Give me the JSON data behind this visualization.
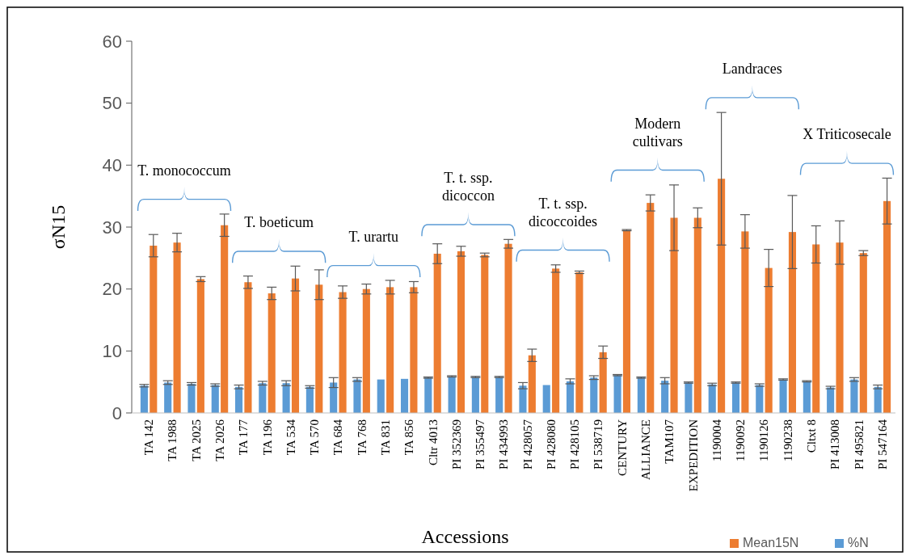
{
  "chart_data": {
    "type": "bar",
    "xlabel": "Accessions",
    "ylabel": "σN15",
    "categories": [
      "TA 142",
      "TA 1988",
      "TA 2025",
      "TA 2026",
      "TA 177",
      "TA 196",
      "TA 534",
      "TA 570",
      "TA 684",
      "TA 768",
      "TA 831",
      "TA 856",
      "Cltr 4013",
      "PI 352369",
      "PI 355497",
      "PI 434993",
      "PI 428057",
      "PI 428080",
      "PI 428105",
      "PI 538719",
      "CENTURY",
      "ALLIANCE",
      "TAM107",
      "EXPEDITION",
      "1190004",
      "1190092",
      "1190126",
      "1190238",
      "Cltxt 8",
      "PI 413008",
      "PI 495821",
      "PI 547164"
    ],
    "series": [
      {
        "name": "%N",
        "color": "#5b9bd5",
        "values": [
          4.4,
          4.9,
          4.7,
          4.5,
          4.2,
          4.8,
          4.8,
          4.2,
          4.9,
          5.4,
          5.4,
          5.5,
          5.7,
          5.9,
          5.8,
          5.8,
          4.4,
          4.5,
          5.1,
          5.7,
          6.1,
          5.7,
          5.2,
          4.9,
          4.6,
          4.9,
          4.5,
          5.4,
          5.1,
          4.1,
          5.4,
          4.2
        ],
        "errors": [
          0.2,
          0.3,
          0.2,
          0.2,
          0.3,
          0.3,
          0.4,
          0.2,
          0.8,
          0.3,
          null,
          null,
          0.1,
          0.1,
          0.1,
          0.1,
          0.5,
          null,
          0.4,
          0.3,
          0.1,
          0.1,
          0.5,
          0.1,
          0.2,
          0.1,
          0.2,
          0.1,
          0.1,
          0.2,
          0.3,
          0.3
        ]
      },
      {
        "name": "Mean15N",
        "color": "#ed7d31",
        "values": [
          27,
          27.5,
          21.6,
          30.3,
          21.1,
          19.3,
          21.7,
          20.7,
          19.5,
          20,
          20.3,
          20.3,
          25.7,
          26.1,
          25.5,
          27.3,
          9.3,
          23.3,
          22.7,
          9.8,
          29.5,
          33.9,
          31.5,
          31.5,
          37.8,
          29.3,
          23.4,
          29.2,
          27.2,
          27.5,
          25.8,
          34.2
        ],
        "errors": [
          1.8,
          1.5,
          0.4,
          1.8,
          1,
          1,
          2,
          2.4,
          1,
          0.8,
          1.1,
          0.9,
          1.6,
          0.8,
          0.3,
          0.7,
          1,
          0.6,
          0.2,
          1,
          0.1,
          1.3,
          5.3,
          1.6,
          10.7,
          2.7,
          3,
          5.9,
          3,
          3.5,
          0.4,
          3.7
        ]
      }
    ],
    "ylim": [
      0,
      60
    ],
    "yticks": [
      0,
      10,
      20,
      30,
      40,
      50,
      60
    ],
    "grid": false,
    "legend": "bottom right",
    "annotations": [
      "T. monococcum",
      "T. boeticum",
      "T. urartu",
      "T. t. ssp. dicoccon",
      "T. t. ssp. dicoccoides",
      "Modern cultivars",
      "Landraces",
      "X Triticosecale"
    ]
  }
}
